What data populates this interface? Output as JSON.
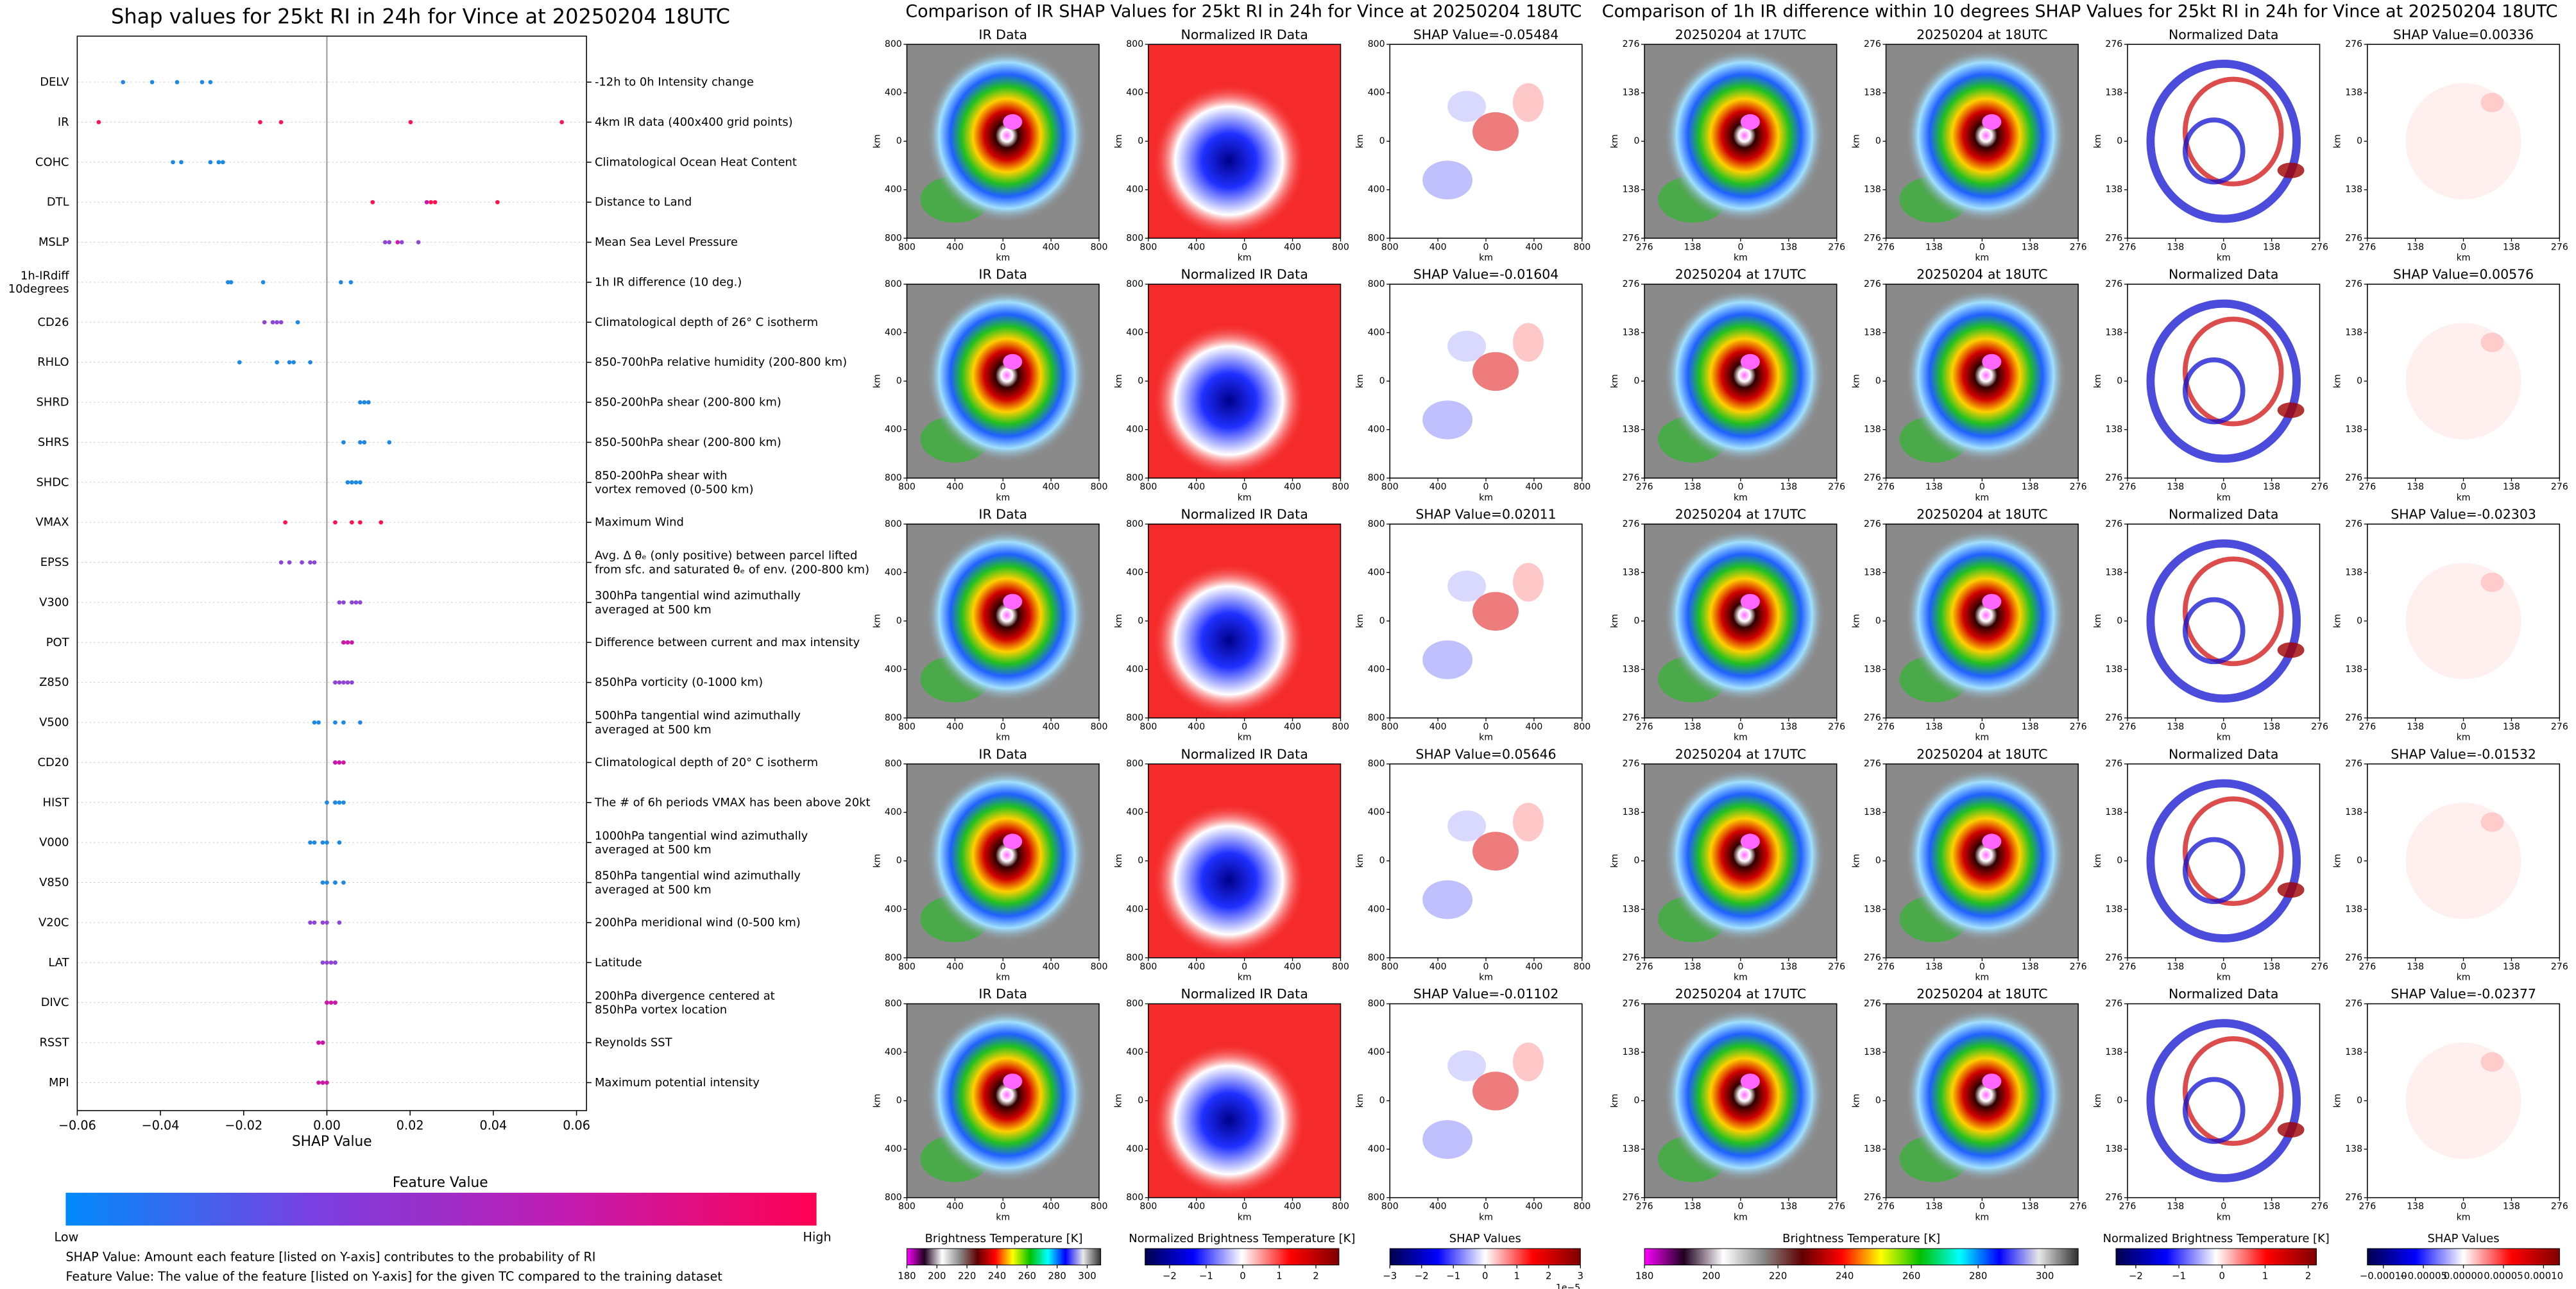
{
  "chart_data": {
    "type": "beeswarm",
    "title": "Shap values for 25kt RI in 24h for Vince at 20250204 18UTC",
    "xlabel": "SHAP Value",
    "categories": [
      "DELV",
      "IR",
      "COHC",
      "DTL",
      "MSLP",
      "1h-IRdiff\n10degrees",
      "CD26",
      "RHLO",
      "SHRD",
      "SHRS",
      "SHDC",
      "VMAX",
      "EPSS",
      "V300",
      "POT",
      "Z850",
      "V500",
      "CD20",
      "HIST",
      "V000",
      "V850",
      "V20C",
      "LAT",
      "DIVC",
      "RSST",
      "MPI"
    ],
    "descriptions": [
      "-12h to 0h Intensity change",
      "4km IR data (400x400 grid points)",
      "Climatological Ocean Heat Content",
      "Distance to Land",
      "Mean Sea Level Pressure",
      "1h IR difference (10 deg.)",
      "Climatological depth of 26° C isotherm",
      "850-700hPa relative humidity (200-800 km)",
      "850-200hPa shear (200-800 km)",
      "850-500hPa shear (200-800 km)",
      "850-200hPa shear with\nvortex removed (0-500 km)",
      "Maximum Wind",
      "Avg. Δ θₑ (only positive) between parcel lifted\nfrom sfc. and saturated θₑ of env. (200-800 km)",
      "300hPa tangential wind azimuthally\naveraged at 500 km",
      "Difference between current and max intensity",
      "850hPa vorticity (0-1000 km)",
      "500hPa tangential wind azimuthally\naveraged at 500 km",
      "Climatological depth of 20° C isotherm",
      "The # of 6h periods VMAX has been above 20kt",
      "1000hPa tangential wind azimuthally\naveraged at 500 km",
      "850hPa tangential wind azimuthally\naveraged at 500 km",
      "200hPa meridional wind (0-500 km)",
      "Latitude",
      "200hPa divergence centered at\n850hPa vortex location",
      "Reynolds SST",
      "Maximum potential intensity"
    ],
    "values": [
      [
        -0.049,
        -0.042,
        -0.036,
        -0.03,
        -0.028
      ],
      [
        -0.05484,
        -0.01604,
        0.02011,
        0.05646,
        -0.01102
      ],
      [
        -0.037,
        -0.035,
        -0.028,
        -0.026,
        -0.025
      ],
      [
        0.011,
        0.024,
        0.025,
        0.041,
        0.026
      ],
      [
        0.014,
        0.015,
        0.017,
        0.018,
        0.022
      ],
      [
        0.00336,
        0.00576,
        -0.02303,
        -0.01532,
        -0.02377
      ],
      [
        -0.015,
        -0.013,
        -0.011,
        -0.007,
        -0.012
      ],
      [
        -0.021,
        -0.012,
        -0.009,
        -0.008,
        -0.004
      ],
      [
        0.008,
        0.009,
        0.01,
        0.01,
        0.009
      ],
      [
        0.004,
        0.008,
        0.009,
        0.015,
        0.009
      ],
      [
        0.005,
        0.006,
        0.007,
        0.008,
        0.006
      ],
      [
        -0.01,
        0.002,
        0.006,
        0.008,
        0.013
      ],
      [
        -0.011,
        -0.009,
        -0.006,
        -0.004,
        -0.003
      ],
      [
        0.003,
        0.004,
        0.006,
        0.007,
        0.008
      ],
      [
        0.004,
        0.004,
        0.005,
        0.005,
        0.006
      ],
      [
        0.002,
        0.003,
        0.004,
        0.005,
        0.006
      ],
      [
        -0.003,
        -0.002,
        0.002,
        0.004,
        0.008
      ],
      [
        0.002,
        0.002,
        0.003,
        0.003,
        0.004
      ],
      [
        0,
        0.002,
        0.002,
        0.003,
        0.004
      ],
      [
        -0.004,
        -0.003,
        -0.001,
        0,
        0.003
      ],
      [
        -0.001,
        0,
        0.002,
        0.002,
        0.004
      ],
      [
        -0.004,
        -0.003,
        -0.001,
        0,
        0.003
      ],
      [
        -0.001,
        0,
        0.001,
        0.002,
        0.002
      ],
      [
        0,
        0,
        0.001,
        0.002,
        0.002
      ],
      [
        -0.002,
        -0.002,
        -0.001,
        -0.001,
        -0.001
      ],
      [
        -0.002,
        -0.001,
        -0.001,
        -0.001,
        0
      ]
    ],
    "point_colors": [
      [
        "#1e88e5",
        "#1e88e5",
        "#1e88e5",
        "#1e88e5",
        "#1e88e5"
      ],
      [
        "#ff1050",
        "#ff1050",
        "#ff1050",
        "#ff1050",
        "#ff1050"
      ],
      [
        "#1e88e5",
        "#1e88e5",
        "#1e88e5",
        "#1e88e5",
        "#1e88e5"
      ],
      [
        "#ff1050",
        "#cc16a8",
        "#ff1050",
        "#ff1050",
        "#ff1050"
      ],
      [
        "#8e44d6",
        "#8e44d6",
        "#cc16a8",
        "#8e44d6",
        "#8e44d6"
      ],
      [
        "#1e88e5",
        "#1e88e5",
        "#1e88e5",
        "#1e88e5",
        "#1e88e5"
      ],
      [
        "#8e44d6",
        "#8e44d6",
        "#8e44d6",
        "#1e88e5",
        "#8e44d6"
      ],
      [
        "#1e88e5",
        "#1e88e5",
        "#1e88e5",
        "#1e88e5",
        "#1e88e5"
      ],
      [
        "#1e88e5",
        "#1e88e5",
        "#1e88e5",
        "#1e88e5",
        "#1e88e5"
      ],
      [
        "#1e88e5",
        "#1e88e5",
        "#1e88e5",
        "#1e88e5",
        "#1e88e5"
      ],
      [
        "#1e88e5",
        "#1e88e5",
        "#1e88e5",
        "#1e88e5",
        "#1e88e5"
      ],
      [
        "#ff1050",
        "#ff1050",
        "#ff1050",
        "#ff1050",
        "#ff1050"
      ],
      [
        "#8e44d6",
        "#8e44d6",
        "#8e44d6",
        "#8e44d6",
        "#8e44d6"
      ],
      [
        "#8e44d6",
        "#8e44d6",
        "#8e44d6",
        "#8e44d6",
        "#8e44d6"
      ],
      [
        "#cc16a8",
        "#cc16a8",
        "#cc16a8",
        "#cc16a8",
        "#cc16a8"
      ],
      [
        "#8e44d6",
        "#8e44d6",
        "#8e44d6",
        "#8e44d6",
        "#8e44d6"
      ],
      [
        "#1e88e5",
        "#1e88e5",
        "#1e88e5",
        "#1e88e5",
        "#1e88e5"
      ],
      [
        "#cc16a8",
        "#cc16a8",
        "#cc16a8",
        "#cc16a8",
        "#cc16a8"
      ],
      [
        "#1e88e5",
        "#1e88e5",
        "#1e88e5",
        "#1e88e5",
        "#1e88e5"
      ],
      [
        "#1e88e5",
        "#1e88e5",
        "#1e88e5",
        "#1e88e5",
        "#1e88e5"
      ],
      [
        "#1e88e5",
        "#1e88e5",
        "#1e88e5",
        "#1e88e5",
        "#1e88e5"
      ],
      [
        "#8e44d6",
        "#8e44d6",
        "#8e44d6",
        "#8e44d6",
        "#8e44d6"
      ],
      [
        "#8e44d6",
        "#8e44d6",
        "#8e44d6",
        "#8e44d6",
        "#8e44d6"
      ],
      [
        "#cc16a8",
        "#cc16a8",
        "#cc16a8",
        "#cc16a8",
        "#cc16a8"
      ],
      [
        "#cc16a8",
        "#cc16a8",
        "#cc16a8",
        "#cc16a8",
        "#cc16a8"
      ],
      [
        "#cc16a8",
        "#cc16a8",
        "#cc16a8",
        "#cc16a8",
        "#cc16a8"
      ]
    ],
    "xlim": [
      -0.06,
      0.0624
    ],
    "xticks": [
      {
        "value": -0.06,
        "label": "−0.06"
      },
      {
        "value": -0.04,
        "label": "−0.04"
      },
      {
        "value": -0.02,
        "label": "−0.02"
      },
      {
        "value": 0,
        "label": "0.00"
      },
      0.02,
      0.04,
      0.06
    ],
    "zero_line": true,
    "colorbar": {
      "label": "Feature Value",
      "low": "Low",
      "high": "High",
      "colors": [
        "#008bfb",
        "#7a3fe0",
        "#c21cb0",
        "#ff0052"
      ]
    },
    "notes": [
      "SHAP Value: Amount each feature [listed on Y-axis] contributes to the probability of RI",
      "Feature Value: The value of the feature [listed on Y-axis] for the given TC compared to the training dataset"
    ]
  },
  "ir_figure": {
    "title": "Comparison of IR SHAP Values for 25kt RI in 24h for Vince at 20250204 18UTC",
    "columns": [
      "IR Data",
      "Normalized IR Data"
    ],
    "shap_titles": [
      "SHAP Value=-0.05484",
      "SHAP Value=-0.01604",
      "SHAP Value=0.02011",
      "SHAP Value=0.05646",
      "SHAP Value=-0.01102"
    ],
    "axis_label": "km",
    "lim": [
      -800,
      800
    ],
    "ticks": [
      {
        "value": -800,
        "label": "800"
      },
      {
        "value": -400,
        "label": "400"
      },
      0,
      400,
      800
    ],
    "colorbars": [
      {
        "label": "Brightness Temperature [K]",
        "lim": [
          180,
          309
        ],
        "ticks": [
          180,
          200,
          220,
          240,
          260,
          280,
          300
        ],
        "colors": [
          "#ff00ff",
          "#200020",
          "#ffffff",
          "#8a8a8a",
          "#600000",
          "#ff0000",
          "#ffff00",
          "#00c000",
          "#00ffff",
          "#0000ff",
          "#e8e8e8",
          "#303030"
        ]
      },
      {
        "label": "Normalized Brightness Temperature [K]",
        "lim": [
          -2.67,
          2.63
        ],
        "ticks": [
          {
            "value": -2,
            "label": "−2"
          },
          {
            "value": -1,
            "label": "−1"
          },
          0,
          1,
          2
        ],
        "colors": [
          "#00004c",
          "#0000ff",
          "#ffffff",
          "#ff0000",
          "#7f0000"
        ]
      },
      {
        "label": "SHAP Values",
        "lim": [
          -3,
          3
        ],
        "ticks": [
          {
            "value": -3,
            "label": "−3"
          },
          {
            "value": -2,
            "label": "−2"
          },
          {
            "value": -1,
            "label": "−1"
          },
          0,
          1,
          2,
          3
        ],
        "offset_label": "1e−5",
        "colors": [
          "#00004c",
          "#0000ff",
          "#ffffff",
          "#ff0000",
          "#7f0000"
        ]
      }
    ]
  },
  "diff_figure": {
    "title": "Comparison of 1h IR difference within 10 degrees SHAP Values for 25kt RI in 24h for Vince at 20250204 18UTC",
    "columns": [
      "20250204 at 17UTC",
      "20250204 at 18UTC",
      "Normalized Data"
    ],
    "shap_titles": [
      "SHAP Value=0.00336",
      "SHAP Value=0.00576",
      "SHAP Value=-0.02303",
      "SHAP Value=-0.01532",
      "SHAP Value=-0.02377"
    ],
    "axis_label": "km",
    "lim": [
      -276,
      276
    ],
    "ticks": [
      {
        "value": -276,
        "label": "276"
      },
      {
        "value": -138,
        "label": "138"
      },
      0,
      138,
      276
    ],
    "colorbars": [
      {
        "label": "Brightness Temperature [K]",
        "lim": [
          180,
          310
        ],
        "ticks": [
          180,
          200,
          220,
          240,
          260,
          280,
          300
        ],
        "colors": [
          "#ff00ff",
          "#200020",
          "#ffffff",
          "#8a8a8a",
          "#600000",
          "#ff0000",
          "#ffff00",
          "#00c000",
          "#00ffff",
          "#0000ff",
          "#e8e8e8",
          "#303030"
        ]
      },
      {
        "label": "Normalized Brightness Temperature [K]",
        "lim": [
          -2.46,
          2.19
        ],
        "ticks": [
          {
            "value": -2,
            "label": "−2"
          },
          {
            "value": -1,
            "label": "−1"
          },
          0,
          1,
          2
        ],
        "colors": [
          "#00004c",
          "#0000ff",
          "#ffffff",
          "#ff0000",
          "#7f0000"
        ]
      },
      {
        "label": "SHAP Values",
        "lim": [
          -0.00012,
          0.00012
        ],
        "ticks": [
          {
            "value": -0.0001,
            "label": "−0.00010"
          },
          {
            "value": -5e-05,
            "label": "−0.00005"
          },
          {
            "value": 0,
            "label": "0.00000"
          },
          {
            "value": 5e-05,
            "label": "0.00005"
          },
          {
            "value": 0.0001,
            "label": "0.00010"
          }
        ],
        "colors": [
          "#00004c",
          "#0000ff",
          "#ffffff",
          "#ff0000",
          "#7f0000"
        ]
      }
    ]
  }
}
